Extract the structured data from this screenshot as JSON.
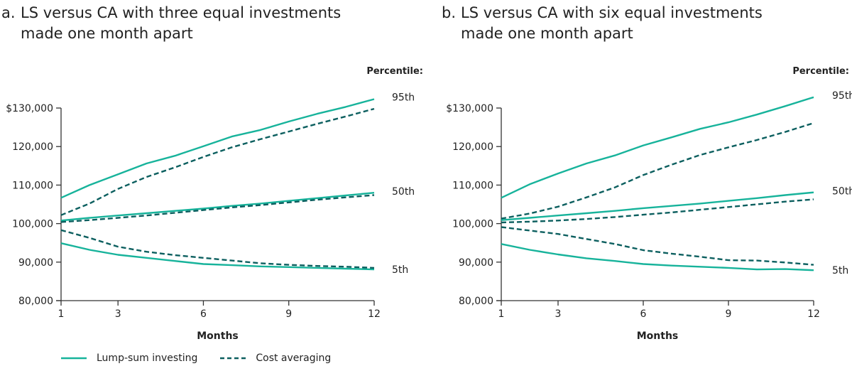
{
  "chart_data": [
    {
      "type": "line",
      "panel_label": "a.",
      "title_line1": "LS versus CA with three equal investments",
      "title_line2": "made one month apart",
      "xlabel": "Months",
      "ylabel": "",
      "x": [
        1,
        2,
        3,
        4,
        5,
        6,
        7,
        8,
        9,
        10,
        11,
        12
      ],
      "x_ticks": [
        1,
        3,
        6,
        9,
        12
      ],
      "y_ticks": [
        80000,
        90000,
        100000,
        110000,
        120000,
        130000
      ],
      "y_tick_labels": [
        "80,000",
        "90,000",
        "100,000",
        "110,000",
        "120,000",
        "$130,000"
      ],
      "ylim": [
        80000,
        132000
      ],
      "xlim": [
        1,
        12
      ],
      "grid": false,
      "percentile_header": "Percentile:",
      "percentile_labels": [
        "95th",
        "50th",
        "5th"
      ],
      "series": [
        {
          "name": "Lump-sum investing 95th",
          "style": "solid",
          "values": [
            106700,
            110000,
            112800,
            115600,
            117600,
            120100,
            122600,
            124300,
            126500,
            128500,
            130300,
            132300
          ]
        },
        {
          "name": "Cost averaging 95th",
          "style": "dashed",
          "values": [
            102200,
            105200,
            109000,
            112100,
            114600,
            117300,
            119800,
            121900,
            123900,
            125900,
            127800,
            129800
          ]
        },
        {
          "name": "Lump-sum investing 50th",
          "style": "solid",
          "values": [
            100800,
            101500,
            102100,
            102700,
            103300,
            103900,
            104600,
            105200,
            105900,
            106600,
            107300,
            108000
          ]
        },
        {
          "name": "Cost averaging 50th",
          "style": "dashed",
          "values": [
            100400,
            100900,
            101500,
            102100,
            102800,
            103500,
            104200,
            104800,
            105500,
            106200,
            106800,
            107400
          ]
        },
        {
          "name": "Lump-sum investing 5th",
          "style": "solid",
          "values": [
            94900,
            93200,
            91900,
            91100,
            90300,
            89500,
            89200,
            88900,
            88700,
            88500,
            88300,
            88100
          ]
        },
        {
          "name": "Cost averaging 5th",
          "style": "dashed",
          "values": [
            98300,
            96300,
            94000,
            92700,
            91800,
            91100,
            90400,
            89700,
            89300,
            89000,
            88800,
            88500
          ]
        }
      ]
    },
    {
      "type": "line",
      "panel_label": "b.",
      "title_line1": "LS versus CA with six equal investments",
      "title_line2": "made one month apart",
      "xlabel": "Months",
      "ylabel": "",
      "x": [
        1,
        2,
        3,
        4,
        5,
        6,
        7,
        8,
        9,
        10,
        11,
        12
      ],
      "x_ticks": [
        1,
        3,
        6,
        9,
        12
      ],
      "y_ticks": [
        80000,
        90000,
        100000,
        110000,
        120000,
        130000
      ],
      "y_tick_labels": [
        "80,000",
        "90,000",
        "100,000",
        "110,000",
        "120,000",
        "$130,000"
      ],
      "ylim": [
        80000,
        132000
      ],
      "xlim": [
        1,
        12
      ],
      "grid": false,
      "percentile_header": "Percentile:",
      "percentile_labels": [
        "95th",
        "50th",
        "5th"
      ],
      "series": [
        {
          "name": "Lump-sum investing 95th",
          "style": "solid",
          "values": [
            106700,
            110200,
            113000,
            115600,
            117700,
            120300,
            122400,
            124600,
            126300,
            128300,
            130500,
            132800
          ]
        },
        {
          "name": "Cost averaging 95th",
          "style": "dashed",
          "values": [
            101300,
            102600,
            104400,
            106800,
            109400,
            112600,
            115300,
            117800,
            119800,
            121700,
            123800,
            126100
          ]
        },
        {
          "name": "Lump-sum investing 50th",
          "style": "solid",
          "values": [
            100900,
            101500,
            102100,
            102700,
            103300,
            104000,
            104600,
            105200,
            105900,
            106600,
            107400,
            108100
          ]
        },
        {
          "name": "Cost averaging 50th",
          "style": "dashed",
          "values": [
            100300,
            100500,
            100800,
            101200,
            101700,
            102300,
            102900,
            103600,
            104300,
            105000,
            105700,
            106300
          ]
        },
        {
          "name": "Lump-sum investing 5th",
          "style": "solid",
          "values": [
            94700,
            93200,
            92000,
            91000,
            90300,
            89500,
            89100,
            88800,
            88500,
            88100,
            88200,
            87900
          ]
        },
        {
          "name": "Cost averaging 5th",
          "style": "dashed",
          "values": [
            99100,
            98200,
            97300,
            96000,
            94700,
            93100,
            92200,
            91400,
            90500,
            90400,
            89900,
            89300
          ]
        }
      ]
    }
  ],
  "legend": {
    "items": [
      {
        "label": "Lump-sum investing",
        "style": "solid"
      },
      {
        "label": "Cost averaging",
        "style": "dashed"
      }
    ],
    "placement": "bottom-left"
  },
  "colors": {
    "lump_sum": "#17b39b",
    "cost_averaging": "#0c5f5f",
    "axis": "#333333",
    "text": "#222222"
  }
}
